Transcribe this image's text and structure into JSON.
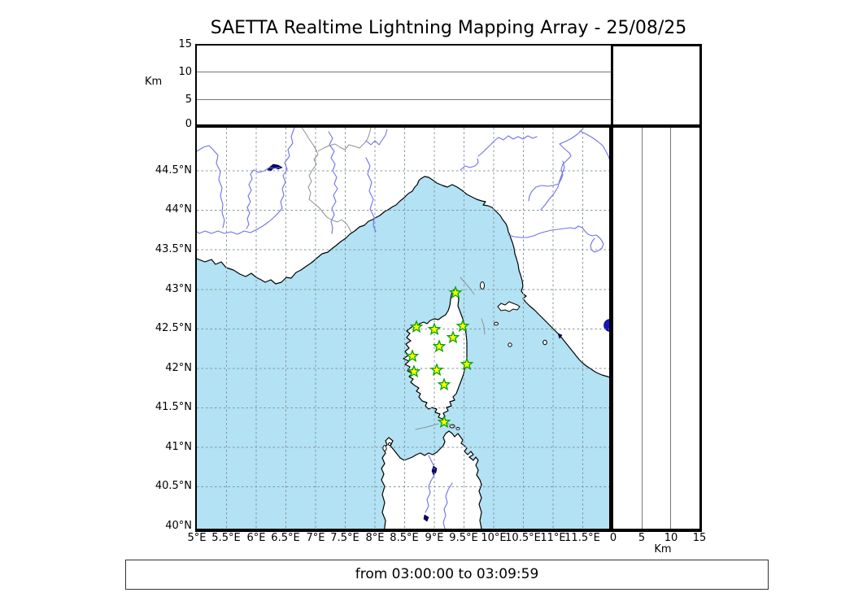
{
  "title": "SAETTA Realtime Lightning Mapping Array - 25/08/25",
  "caption": "from 03:00:00 to 03:09:59",
  "altitude_panel": {
    "axis_label": "Km",
    "ticks": [
      "15",
      "10",
      "5",
      "0"
    ]
  },
  "right_panel": {
    "axis_label": "Km",
    "ticks": [
      "0",
      "5",
      "10",
      "15"
    ]
  },
  "map_panel": {
    "lat_ticks": [
      "44.5°N",
      "44°N",
      "43.5°N",
      "43°N",
      "42.5°N",
      "42°N",
      "41.5°N",
      "41°N",
      "40.5°N",
      "40°N"
    ],
    "lon_ticks": [
      "5°E",
      "5.5°E",
      "6°E",
      "6.5°E",
      "7°E",
      "7.5°E",
      "8°E",
      "8.5°E",
      "9°E",
      "9.5°E",
      "10°E",
      "10.5°E",
      "11°E",
      "11.5°E"
    ]
  },
  "colors": {
    "sea": "#b2e2f3",
    "land": "#ffffff",
    "river": "#7070ee",
    "border": "#909090",
    "lake": "#000080",
    "bright_lake": "#1414d2",
    "station_fill": "#ffff00",
    "station_stroke": "#00a000"
  },
  "chart_data": {
    "type": "map",
    "title": "SAETTA Realtime Lightning Mapping Array - 25/08/25",
    "time_window": "from 03:00:00 to 03:09:59",
    "lon_range_deg_e": [
      5,
      12
    ],
    "lat_range_deg_n": [
      40,
      45.05
    ],
    "grid_interval_deg": 0.5,
    "altitude_axis": {
      "unit": "Km",
      "range": [
        0,
        15
      ],
      "ticks": [
        0,
        5,
        10,
        15
      ]
    },
    "lightning_events_plotted": 0,
    "stations": [
      {
        "lon": 9.36,
        "lat": 42.96,
        "px": [
          560,
          360
        ]
      },
      {
        "lon": 8.7,
        "lat": 42.52,
        "px": [
          512,
          402
        ]
      },
      {
        "lon": 9.0,
        "lat": 42.49,
        "px": [
          534,
          405
        ]
      },
      {
        "lon": 9.48,
        "lat": 42.53,
        "px": [
          569,
          401
        ]
      },
      {
        "lon": 9.32,
        "lat": 42.39,
        "px": [
          557,
          415
        ]
      },
      {
        "lon": 9.08,
        "lat": 42.28,
        "px": [
          540,
          426
        ]
      },
      {
        "lon": 8.63,
        "lat": 42.15,
        "px": [
          507,
          438
        ]
      },
      {
        "lon": 9.55,
        "lat": 42.05,
        "px": [
          574,
          448
        ]
      },
      {
        "lon": 8.66,
        "lat": 41.96,
        "px": [
          509,
          457
        ]
      },
      {
        "lon": 9.04,
        "lat": 41.98,
        "px": [
          537,
          455
        ]
      },
      {
        "lon": 9.16,
        "lat": 41.79,
        "px": [
          546,
          473
        ]
      },
      {
        "lon": 9.16,
        "lat": 41.32,
        "px": [
          546,
          519
        ]
      }
    ]
  }
}
